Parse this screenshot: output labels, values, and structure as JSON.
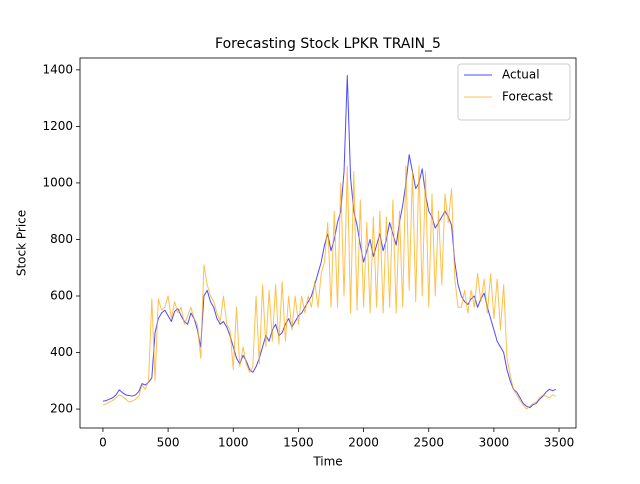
{
  "chart_data": {
    "type": "line",
    "title": "Forecasting Stock LPKR TRAIN_5",
    "xlabel": "Time",
    "ylabel": "Stock Price",
    "x": [
      0,
      25,
      50,
      75,
      100,
      125,
      150,
      175,
      200,
      225,
      250,
      275,
      300,
      325,
      350,
      375,
      400,
      425,
      450,
      475,
      500,
      525,
      550,
      575,
      600,
      625,
      650,
      675,
      700,
      725,
      750,
      775,
      800,
      825,
      850,
      875,
      900,
      925,
      950,
      975,
      1000,
      1025,
      1050,
      1075,
      1100,
      1125,
      1150,
      1175,
      1200,
      1225,
      1250,
      1275,
      1300,
      1325,
      1350,
      1375,
      1400,
      1425,
      1450,
      1475,
      1500,
      1525,
      1550,
      1575,
      1600,
      1625,
      1650,
      1675,
      1700,
      1725,
      1750,
      1775,
      1800,
      1825,
      1850,
      1875,
      1900,
      1925,
      1950,
      1975,
      2000,
      2025,
      2050,
      2075,
      2100,
      2125,
      2150,
      2175,
      2200,
      2225,
      2250,
      2275,
      2300,
      2325,
      2350,
      2375,
      2400,
      2425,
      2450,
      2475,
      2500,
      2525,
      2550,
      2575,
      2600,
      2625,
      2650,
      2675,
      2700,
      2725,
      2750,
      2775,
      2800,
      2825,
      2850,
      2875,
      2900,
      2925,
      2950,
      2975,
      3000,
      3025,
      3050,
      3075,
      3100,
      3125,
      3150,
      3175,
      3200,
      3225,
      3250,
      3275,
      3300,
      3325,
      3350,
      3375,
      3400,
      3425,
      3450,
      3475
    ],
    "series": [
      {
        "name": "Actual",
        "color": "#0000ff",
        "values": [
          228,
          230,
          235,
          240,
          250,
          268,
          258,
          250,
          248,
          246,
          250,
          262,
          290,
          285,
          295,
          310,
          470,
          520,
          540,
          550,
          530,
          510,
          545,
          555,
          530,
          510,
          500,
          540,
          520,
          480,
          420,
          600,
          620,
          580,
          560,
          520,
          500,
          510,
          490,
          460,
          420,
          380,
          360,
          390,
          370,
          340,
          330,
          350,
          380,
          420,
          460,
          440,
          480,
          500,
          460,
          470,
          500,
          520,
          490,
          510,
          530,
          540,
          560,
          580,
          600,
          640,
          680,
          720,
          780,
          820,
          760,
          800,
          860,
          900,
          1040,
          1380,
          1020,
          900,
          850,
          780,
          720,
          760,
          800,
          740,
          780,
          820,
          760,
          800,
          860,
          820,
          780,
          860,
          920,
          1000,
          1100,
          1040,
          980,
          1000,
          1050,
          960,
          900,
          880,
          840,
          860,
          880,
          900,
          880,
          850,
          720,
          640,
          600,
          580,
          570,
          590,
          600,
          560,
          590,
          610,
          560,
          520,
          480,
          440,
          420,
          400,
          340,
          300,
          270,
          260,
          240,
          220,
          210,
          205,
          215,
          220,
          235,
          245,
          260,
          270,
          265,
          270
        ]
      },
      {
        "name": "Forecast",
        "color": "#ffa500",
        "values": [
          215,
          218,
          225,
          230,
          240,
          250,
          245,
          235,
          225,
          228,
          235,
          245,
          285,
          270,
          300,
          590,
          300,
          590,
          550,
          560,
          600,
          520,
          580,
          540,
          560,
          500,
          530,
          560,
          520,
          500,
          380,
          710,
          640,
          600,
          580,
          540,
          510,
          600,
          500,
          480,
          340,
          560,
          350,
          420,
          360,
          330,
          350,
          600,
          360,
          640,
          420,
          620,
          440,
          640,
          430,
          650,
          440,
          600,
          480,
          600,
          500,
          600,
          540,
          600,
          560,
          650,
          560,
          680,
          720,
          860,
          560,
          900,
          560,
          1000,
          600,
          1060,
          540,
          1040,
          550,
          940,
          560,
          860,
          540,
          880,
          560,
          900,
          540,
          880,
          560,
          940,
          540,
          900,
          560,
          1060,
          620,
          1040,
          580,
          1060,
          600,
          1040,
          560,
          960,
          600,
          900,
          640,
          960,
          860,
          980,
          660,
          560,
          560,
          620,
          540,
          620,
          560,
          680,
          580,
          660,
          540,
          680,
          520,
          660,
          480,
          640,
          380,
          320,
          270,
          250,
          230,
          215,
          200,
          210,
          220,
          225,
          240,
          250,
          245,
          240,
          250,
          245
        ]
      }
    ],
    "xlim": [
      -176,
      3630
    ],
    "ylim": [
      133,
      1442
    ],
    "xticks": [
      0,
      500,
      1000,
      1500,
      2000,
      2500,
      3000,
      3500
    ],
    "yticks": [
      200,
      400,
      600,
      800,
      1000,
      1200,
      1400
    ],
    "legend": "upper right"
  }
}
